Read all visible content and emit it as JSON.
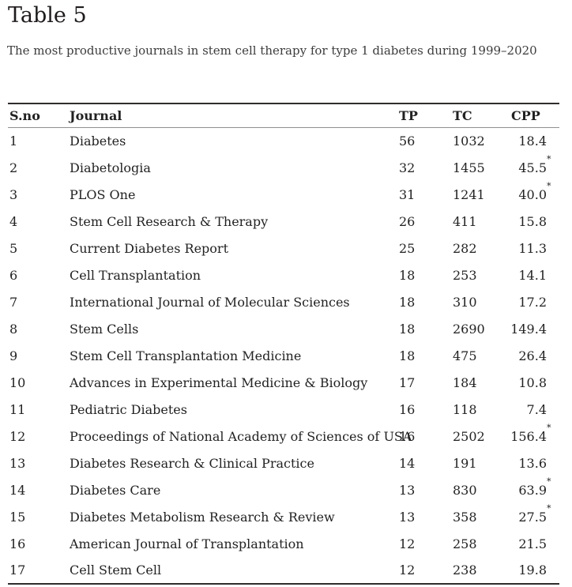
{
  "page": {
    "title": "Table 5",
    "caption": "The most productive journals in stem cell therapy for type 1 diabetes during 1999–2020"
  },
  "table": {
    "headers": {
      "sno": "S.no",
      "journal": "Journal",
      "tp": "TP",
      "tc": "TC",
      "cpp": "CPP"
    },
    "star_symbol": "*",
    "rows": [
      {
        "sno": "1",
        "journal": "Diabetes",
        "tp": "56",
        "tc": "1032",
        "cpp": "18.4",
        "star": false
      },
      {
        "sno": "2",
        "journal": "Diabetologia",
        "tp": "32",
        "tc": "1455",
        "cpp": "45.5",
        "star": true
      },
      {
        "sno": "3",
        "journal": "PLOS One",
        "tp": "31",
        "tc": "1241",
        "cpp": "40.0",
        "star": true
      },
      {
        "sno": "4",
        "journal": "Stem Cell Research & Therapy",
        "tp": "26",
        "tc": "411",
        "cpp": "15.8",
        "star": false
      },
      {
        "sno": "5",
        "journal": "Current Diabetes Report",
        "tp": "25",
        "tc": "282",
        "cpp": "11.3",
        "star": false
      },
      {
        "sno": "6",
        "journal": "Cell Transplantation",
        "tp": "18",
        "tc": "253",
        "cpp": "14.1",
        "star": false
      },
      {
        "sno": "7",
        "journal": "International Journal of Molecular Sciences",
        "tp": "18",
        "tc": "310",
        "cpp": "17.2",
        "star": false
      },
      {
        "sno": "8",
        "journal": "Stem Cells",
        "tp": "18",
        "tc": "2690",
        "cpp": "149.4",
        "star": false
      },
      {
        "sno": "9",
        "journal": "Stem Cell Transplantation Medicine",
        "tp": "18",
        "tc": "475",
        "cpp": "26.4",
        "star": false
      },
      {
        "sno": "10",
        "journal": "Advances in Experimental Medicine & Biology",
        "tp": "17",
        "tc": "184",
        "cpp": "10.8",
        "star": false
      },
      {
        "sno": "11",
        "journal": "Pediatric Diabetes",
        "tp": "16",
        "tc": "118",
        "cpp": "7.4",
        "star": false
      },
      {
        "sno": "12",
        "journal": "Proceedings of National Academy of Sciences of USA",
        "tp": "16",
        "tc": "2502",
        "cpp": "156.4",
        "star": true
      },
      {
        "sno": "13",
        "journal": "Diabetes Research & Clinical Practice",
        "tp": "14",
        "tc": "191",
        "cpp": "13.6",
        "star": false
      },
      {
        "sno": "14",
        "journal": "Diabetes Care",
        "tp": "13",
        "tc": "830",
        "cpp": "63.9",
        "star": true
      },
      {
        "sno": "15",
        "journal": "Diabetes Metabolism Research & Review",
        "tp": "13",
        "tc": "358",
        "cpp": "27.5",
        "star": true
      },
      {
        "sno": "16",
        "journal": "American Journal of Transplantation",
        "tp": "12",
        "tc": "258",
        "cpp": "21.5",
        "star": false
      },
      {
        "sno": "17",
        "journal": "Cell Stem Cell",
        "tp": "12",
        "tc": "238",
        "cpp": "19.8",
        "star": false
      }
    ]
  },
  "colors": {
    "text": "#222222",
    "caption_text": "#3c3c3c",
    "border_dark": "#302c2c",
    "border_light": "#8f8f8f",
    "background": "#ffffff"
  }
}
